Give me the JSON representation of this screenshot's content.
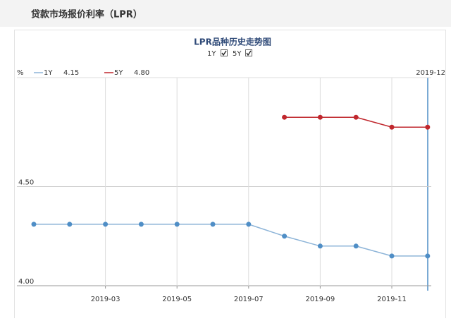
{
  "header": {
    "title": "贷款市场报价利率（LPR）"
  },
  "chart_data": {
    "type": "line",
    "title": "LPR品种历史走势图",
    "toggles": [
      "1Y",
      "5Y"
    ],
    "y_unit": "%",
    "crosshair_label": "2019-12",
    "categories": [
      null,
      null,
      "2019-03",
      null,
      "2019-05",
      null,
      "2019-07",
      null,
      "2019-09",
      null,
      "2019-11",
      null
    ],
    "series": [
      {
        "name": "1Y",
        "color": "#4f8ec6",
        "line_color": "#8db4d8",
        "legend_value": "4.15",
        "values": [
          4.31,
          4.31,
          4.31,
          4.31,
          4.31,
          4.31,
          4.31,
          4.25,
          4.2,
          4.2,
          4.15,
          4.15
        ]
      },
      {
        "name": "5Y",
        "color": "#c0272d",
        "line_color": "#c0272d",
        "legend_value": "4.80",
        "values": [
          null,
          null,
          null,
          null,
          null,
          null,
          null,
          4.85,
          4.85,
          4.85,
          4.8,
          4.8
        ]
      }
    ],
    "ylim": [
      4.0,
      5.05
    ],
    "yticks": [
      {
        "value": 4.0,
        "label": "4.00"
      },
      {
        "value": 4.5,
        "label": "4.50"
      }
    ],
    "grid": true
  }
}
